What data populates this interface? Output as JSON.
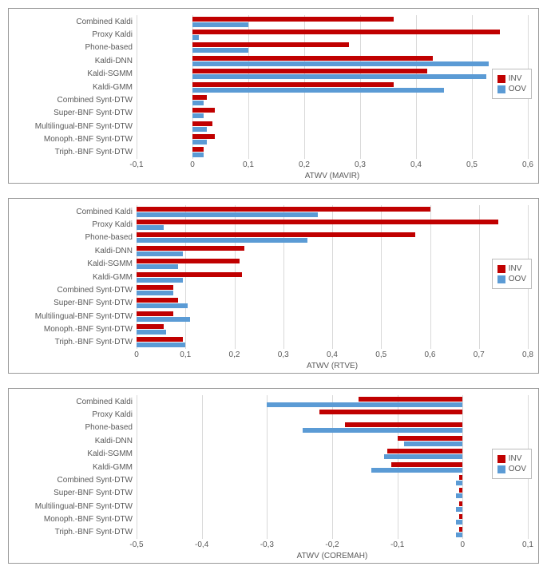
{
  "legend": {
    "inv": "INV",
    "oov": "OOV"
  },
  "colors": {
    "inv": "#c00000",
    "oov": "#5b9bd5",
    "grid": "#d9d9d9",
    "text": "#595959",
    "bg": "#ffffff"
  },
  "font": {
    "label_size": 10,
    "family": "Arial"
  },
  "charts": [
    {
      "type": "bar",
      "orientation": "horizontal",
      "xlabel": "ATWV (MAVIR)",
      "xlim": [
        -0.1,
        0.6
      ],
      "xtick_step": 0.1,
      "decimal_comma": true,
      "categories": [
        "Combined Kaldi",
        "Proxy Kaldi",
        "Phone-based",
        "Kaldi-DNN",
        "Kaldi-SGMM",
        "Kaldi-GMM",
        "Combined Synt-DTW",
        "Super-BNF Synt-DTW",
        "Multilingual-BNF Synt-DTW",
        "Monoph.-BNF Synt-DTW",
        "Triph.-BNF Synt-DTW"
      ],
      "inv": [
        0.36,
        0.55,
        0.28,
        0.43,
        0.42,
        0.36,
        0.025,
        0.04,
        0.035,
        0.04,
        0.02
      ],
      "oov": [
        0.1,
        0.012,
        0.1,
        0.53,
        0.525,
        0.45,
        0.02,
        0.02,
        0.025,
        0.025,
        0.02
      ]
    },
    {
      "type": "bar",
      "orientation": "horizontal",
      "xlabel": "ATWV (RTVE)",
      "xlim": [
        0,
        0.8
      ],
      "xtick_step": 0.1,
      "decimal_comma": true,
      "categories": [
        "Combined Kaldi",
        "Proxy Kaldi",
        "Phone-based",
        "Kaldi-DNN",
        "Kaldi-SGMM",
        "Kaldi-GMM",
        "Combined Synt-DTW",
        "Super-BNF Synt-DTW",
        "Multilingual-BNF Synt-DTW",
        "Monoph.-BNF Synt-DTW",
        "Triph.-BNF Synt-DTW"
      ],
      "inv": [
        0.6,
        0.74,
        0.57,
        0.22,
        0.21,
        0.215,
        0.075,
        0.085,
        0.075,
        0.055,
        0.095
      ],
      "oov": [
        0.37,
        0.055,
        0.35,
        0.095,
        0.085,
        0.095,
        0.075,
        0.105,
        0.11,
        0.06,
        0.1
      ]
    },
    {
      "type": "bar",
      "orientation": "horizontal",
      "xlabel": "ATWV (COREMAH)",
      "xlim": [
        -0.5,
        0.1
      ],
      "xtick_step": 0.1,
      "decimal_comma": true,
      "categories": [
        "Combined Kaldi",
        "Proxy Kaldi",
        "Phone-based",
        "Kaldi-DNN",
        "Kaldi-SGMM",
        "Kaldi-GMM",
        "Combined Synt-DTW",
        "Super-BNF Synt-DTW",
        "Multilingual-BNF Synt-DTW",
        "Monoph.-BNF Synt-DTW",
        "Triph.-BNF Synt-DTW"
      ],
      "inv": [
        -0.16,
        -0.22,
        -0.18,
        -0.1,
        -0.115,
        -0.11,
        -0.005,
        -0.005,
        -0.005,
        -0.005,
        -0.005
      ],
      "oov": [
        -0.3,
        0.0,
        -0.245,
        -0.09,
        -0.12,
        -0.14,
        -0.01,
        -0.01,
        -0.01,
        -0.01,
        -0.01
      ]
    }
  ]
}
